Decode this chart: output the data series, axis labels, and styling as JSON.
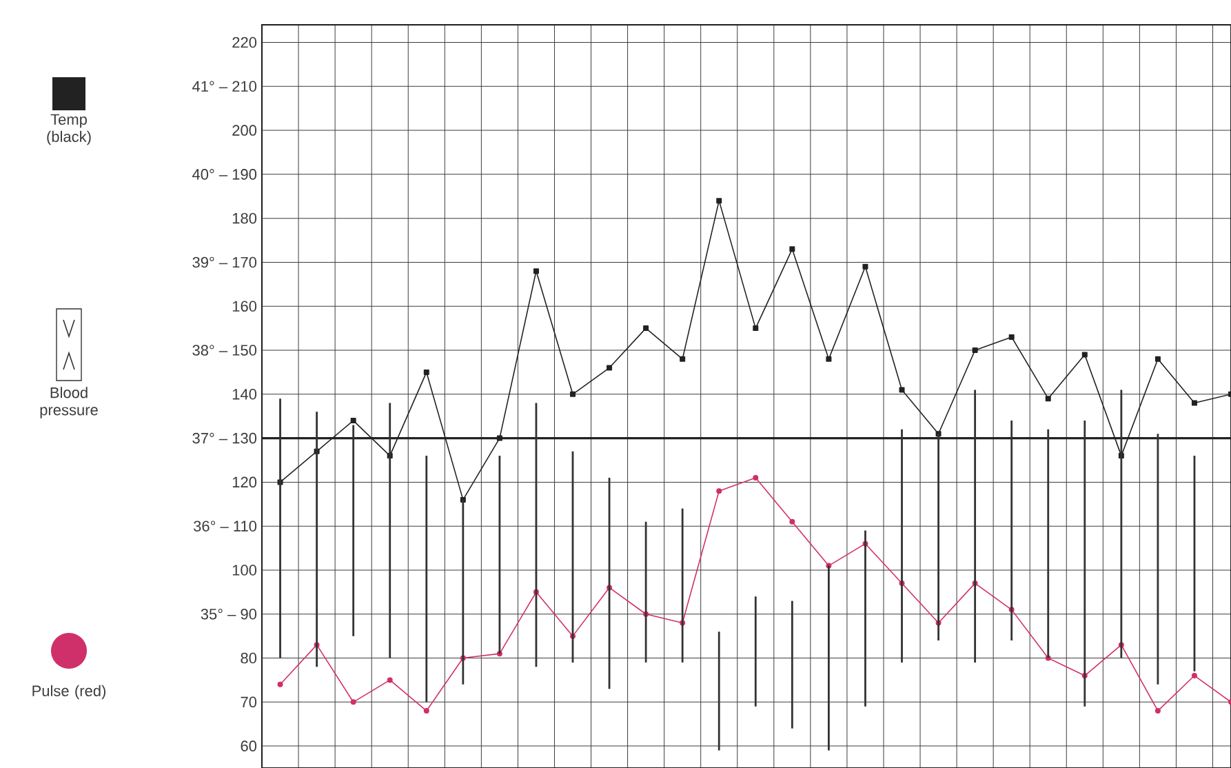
{
  "chart_data": {
    "type": "line",
    "categories": [
      null,
      null,
      null,
      null,
      null,
      null,
      null,
      null,
      null,
      null,
      null,
      null,
      null,
      null,
      null,
      null,
      null,
      null,
      null,
      null,
      null,
      null,
      null,
      null,
      null,
      null,
      null
    ],
    "series": [
      {
        "name": "Temp (black)",
        "color": "#222222",
        "marker": "square",
        "values": [
          120,
          127,
          134,
          126,
          145,
          116,
          130,
          168,
          140,
          146,
          155,
          148,
          184,
          155,
          173,
          148,
          169,
          141,
          131,
          150,
          153,
          139,
          149,
          126,
          148,
          138,
          140
        ]
      },
      {
        "name": "Blood pressure",
        "type": "bar",
        "color": "#333333",
        "base": [
          80,
          78,
          85,
          80,
          70,
          74,
          81,
          78,
          79,
          73,
          79,
          79,
          59,
          69,
          64,
          59,
          69,
          79,
          84,
          79,
          84,
          80,
          69,
          80,
          74,
          77,
          null
        ],
        "values": [
          59,
          58,
          48,
          58,
          56,
          42,
          45,
          60,
          48,
          48,
          32,
          35,
          27,
          25,
          29,
          42,
          40,
          53,
          47,
          62,
          50,
          52,
          65,
          61,
          57,
          49,
          null
        ]
      },
      {
        "name": "Pulse (red)",
        "color": "#d0306a",
        "marker": "circle",
        "values": [
          74,
          83,
          70,
          75,
          68,
          80,
          81,
          95,
          85,
          96,
          90,
          88,
          118,
          121,
          111,
          101,
          106,
          97,
          88,
          97,
          91,
          80,
          76,
          83,
          68,
          76,
          70
        ]
      }
    ],
    "ylim": [
      55,
      224
    ],
    "yticks": [
      220,
      {
        "value": 210,
        "label": "41° – 210"
      },
      200,
      {
        "value": 190,
        "label": "40° – 190"
      },
      180,
      {
        "value": 170,
        "label": "39° – 170"
      },
      160,
      {
        "value": 150,
        "label": "38° – 150"
      },
      140,
      {
        "value": 130,
        "label": "37° – 130"
      },
      120,
      {
        "value": 110,
        "label": "36° – 110"
      },
      100,
      {
        "value": 90,
        "label": "35° – 90"
      },
      80,
      70,
      60
    ],
    "ref_lines": [
      {
        "axis": "y",
        "value": 130,
        "color": "#222222"
      }
    ],
    "grid": true,
    "legend": "left",
    "tick_labels": "y"
  }
}
